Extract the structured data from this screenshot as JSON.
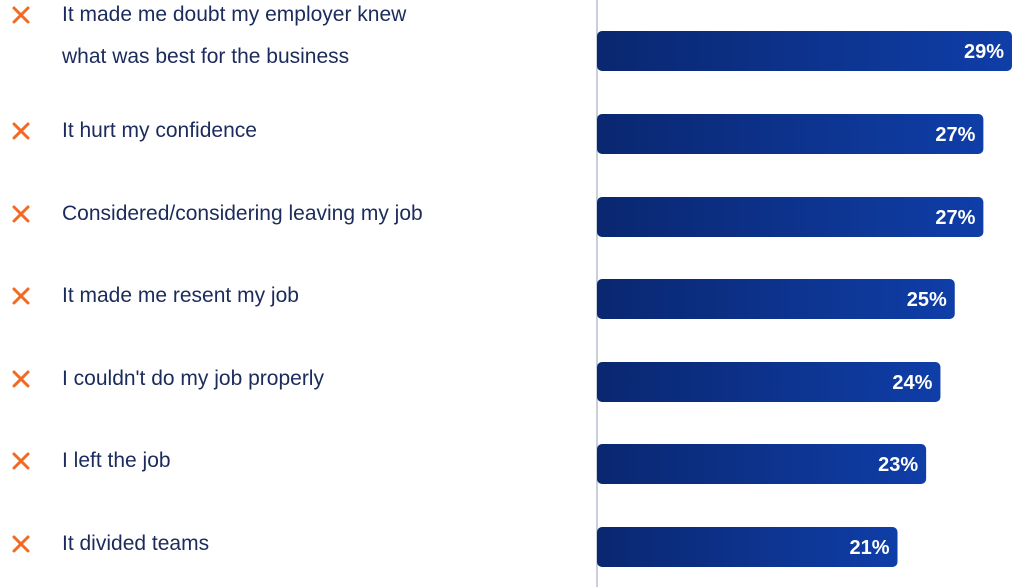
{
  "chart_data": {
    "type": "bar",
    "orientation": "horizontal",
    "categories": [
      "It made me doubt my employer knew what was best for the business",
      "It hurt my confidence",
      "Considered/considering leaving my job",
      "It made me resent my job",
      "I couldn't do my job properly",
      "I left the job",
      "It divided teams"
    ],
    "category_lines": [
      [
        "It made me doubt my employer knew",
        "what was best for the business"
      ],
      [
        "It hurt my confidence"
      ],
      [
        "Considered/considering leaving my job"
      ],
      [
        "It made me resent my job"
      ],
      [
        "I couldn't do my job properly"
      ],
      [
        "I left the job"
      ],
      [
        "It divided teams"
      ]
    ],
    "values": [
      29,
      27,
      27,
      25,
      24,
      23,
      21
    ],
    "value_labels": [
      "29%",
      "27%",
      "27%",
      "25%",
      "24%",
      "23%",
      "21%"
    ],
    "xlim": [
      0,
      29
    ],
    "bar_color_start": "#0a2770",
    "bar_color_end": "#0f3ea8",
    "axis_color": "#b7c0d0",
    "label_color": "#1b2b5b",
    "value_label_color": "#ffffff",
    "icon": "cross-icon",
    "icon_color": "#f26a21",
    "grid": false,
    "legend": "none"
  }
}
